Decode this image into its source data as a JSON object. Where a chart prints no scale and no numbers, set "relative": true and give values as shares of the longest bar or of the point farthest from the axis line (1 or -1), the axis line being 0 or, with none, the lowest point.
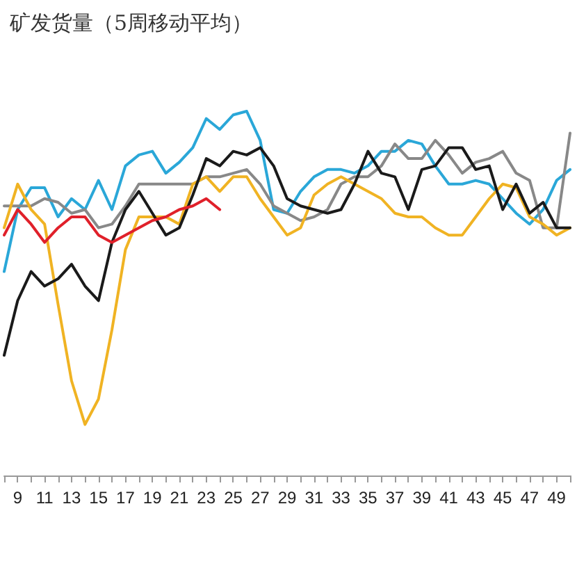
{
  "chart_data": {
    "type": "line",
    "title": "矿发货量（5周移动平均）",
    "relative": true,
    "grid": false,
    "marker": "none",
    "line_style": "solid",
    "categories": [
      null,
      "9",
      null,
      "11",
      null,
      "13",
      null,
      "15",
      null,
      "17",
      null,
      "19",
      null,
      "21",
      null,
      "23",
      null,
      "25",
      null,
      "27",
      null,
      "29",
      null,
      "31",
      null,
      "33",
      null,
      "35",
      null,
      "37",
      null,
      "39",
      null,
      "41",
      null,
      "43",
      null,
      "45",
      null,
      "47",
      null,
      "49",
      null
    ],
    "series": [
      {
        "color": "#2aa7d8",
        "values": [
          0.56,
          0.73,
          0.79,
          0.79,
          0.71,
          0.76,
          0.73,
          0.81,
          0.73,
          0.85,
          0.88,
          0.89,
          0.83,
          0.86,
          0.9,
          0.98,
          0.95,
          0.99,
          1,
          0.92,
          0.73,
          0.72,
          0.78,
          0.82,
          0.84,
          0.84,
          0.83,
          0.85,
          0.89,
          0.89,
          0.92,
          0.91,
          0.85,
          0.8,
          0.8,
          0.81,
          0.8,
          0.76,
          0.72,
          0.69,
          0.73,
          0.81,
          0.84
        ]
      },
      {
        "color": "#888888",
        "values": [
          0.74,
          0.74,
          0.74,
          0.76,
          0.75,
          0.72,
          0.73,
          0.68,
          0.69,
          0.74,
          0.8,
          0.8,
          0.8,
          0.8,
          0.8,
          0.82,
          0.82,
          0.83,
          0.84,
          0.8,
          0.74,
          0.72,
          0.7,
          0.71,
          0.73,
          0.8,
          0.82,
          0.82,
          0.85,
          0.91,
          0.87,
          0.87,
          0.92,
          0.88,
          0.83,
          0.86,
          0.87,
          0.89,
          0.83,
          0.81,
          0.68,
          0.68,
          0.94
        ]
      },
      {
        "color": "#f0b323",
        "values": [
          0.68,
          0.8,
          0.73,
          0.69,
          0.47,
          0.26,
          0.14,
          0.21,
          0.4,
          0.62,
          0.71,
          0.71,
          0.71,
          0.69,
          0.8,
          0.82,
          0.78,
          0.82,
          0.82,
          0.76,
          0.71,
          0.66,
          0.68,
          0.77,
          0.8,
          0.82,
          0.8,
          0.78,
          0.76,
          0.72,
          0.71,
          0.71,
          0.68,
          0.66,
          0.66,
          0.71,
          0.76,
          0.8,
          0.79,
          0.71,
          0.69,
          0.66,
          0.68
        ]
      },
      {
        "color": "#1a1a1a",
        "values": [
          0.33,
          0.48,
          0.56,
          0.52,
          0.54,
          0.58,
          0.52,
          0.48,
          0.64,
          0.73,
          0.78,
          0.72,
          0.66,
          0.68,
          0.77,
          0.87,
          0.85,
          0.89,
          0.88,
          0.9,
          0.85,
          0.76,
          0.74,
          0.73,
          0.72,
          0.73,
          0.8,
          0.89,
          0.83,
          0.82,
          0.73,
          0.84,
          0.85,
          0.9,
          0.9,
          0.84,
          0.85,
          0.73,
          0.8,
          0.72,
          0.75,
          0.68,
          0.68
        ]
      },
      {
        "color": "#e0202a",
        "values": [
          0.66,
          0.73,
          0.69,
          0.64,
          0.68,
          0.71,
          0.71,
          0.66,
          0.64,
          0.66,
          0.68,
          0.7,
          0.71,
          0.73,
          0.74,
          0.76,
          0.73,
          null,
          null,
          null,
          null,
          null,
          null,
          null,
          null,
          null,
          null,
          null,
          null,
          null,
          null,
          null,
          null,
          null,
          null,
          null,
          null,
          null,
          null,
          null,
          null,
          null,
          null
        ]
      }
    ]
  }
}
